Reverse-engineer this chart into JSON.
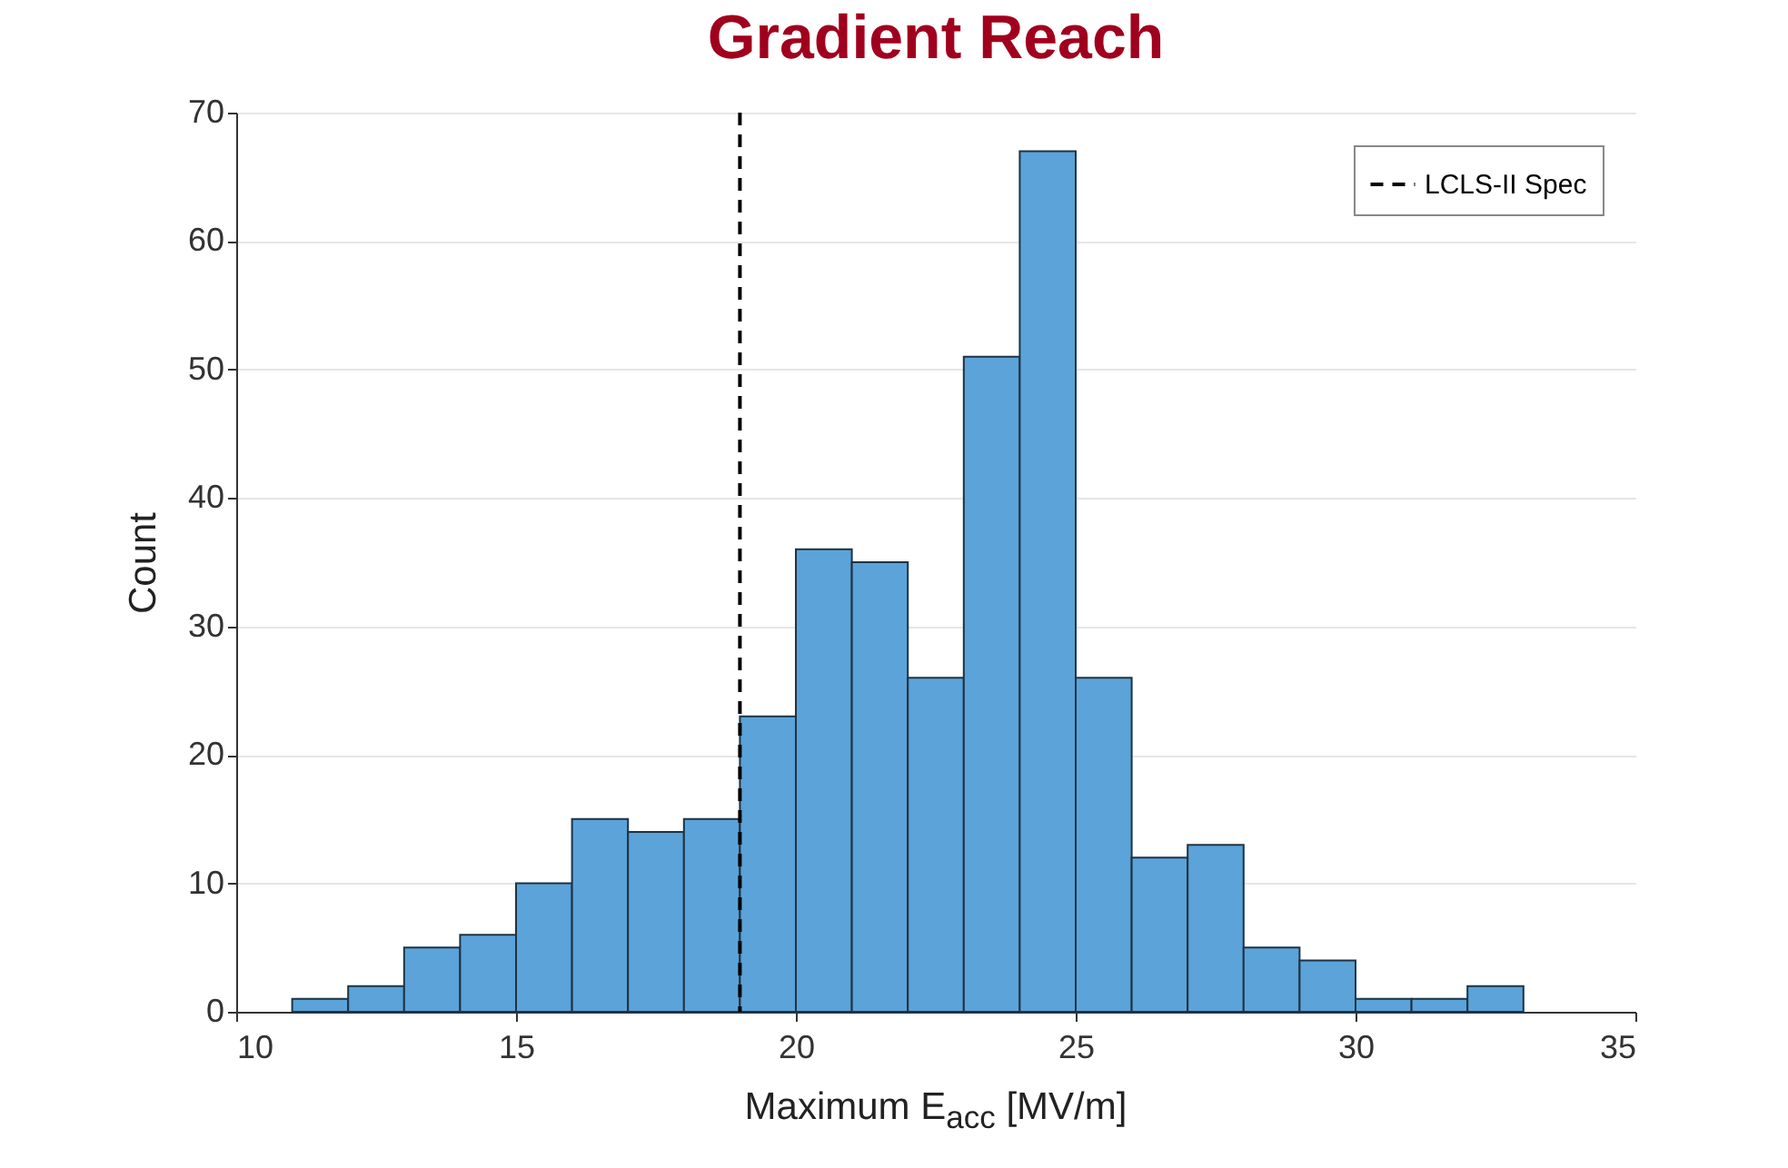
{
  "chart_data": {
    "type": "histogram",
    "title": "Gradient Reach",
    "xlabel": "Maximum E$_{acc}$ [MV/m]",
    "ylabel": "Count",
    "bins": [
      11,
      12,
      13,
      14,
      15,
      16,
      17,
      18,
      19,
      20,
      21,
      22,
      23,
      24,
      25,
      26,
      27,
      28,
      29,
      30,
      31,
      32,
      33
    ],
    "values": [
      1,
      2,
      5,
      6,
      10,
      15,
      14,
      15,
      23,
      36,
      35,
      26,
      51,
      67,
      26,
      12,
      13,
      5,
      4,
      1,
      1,
      2
    ],
    "color": "#5ba3d9",
    "xlim": [
      10,
      35
    ],
    "xticks": [
      10,
      15,
      20,
      25,
      30,
      35
    ],
    "ylim": [
      0,
      70
    ],
    "yticks": [
      0,
      10,
      20,
      30,
      40,
      50,
      60,
      70
    ],
    "grid": "y",
    "legend": "top right",
    "ref_lines": [
      {
        "axis": "x",
        "value": 19,
        "label": "LCLS-II Spec",
        "color": "#000000",
        "line_style": "dashed"
      }
    ]
  }
}
